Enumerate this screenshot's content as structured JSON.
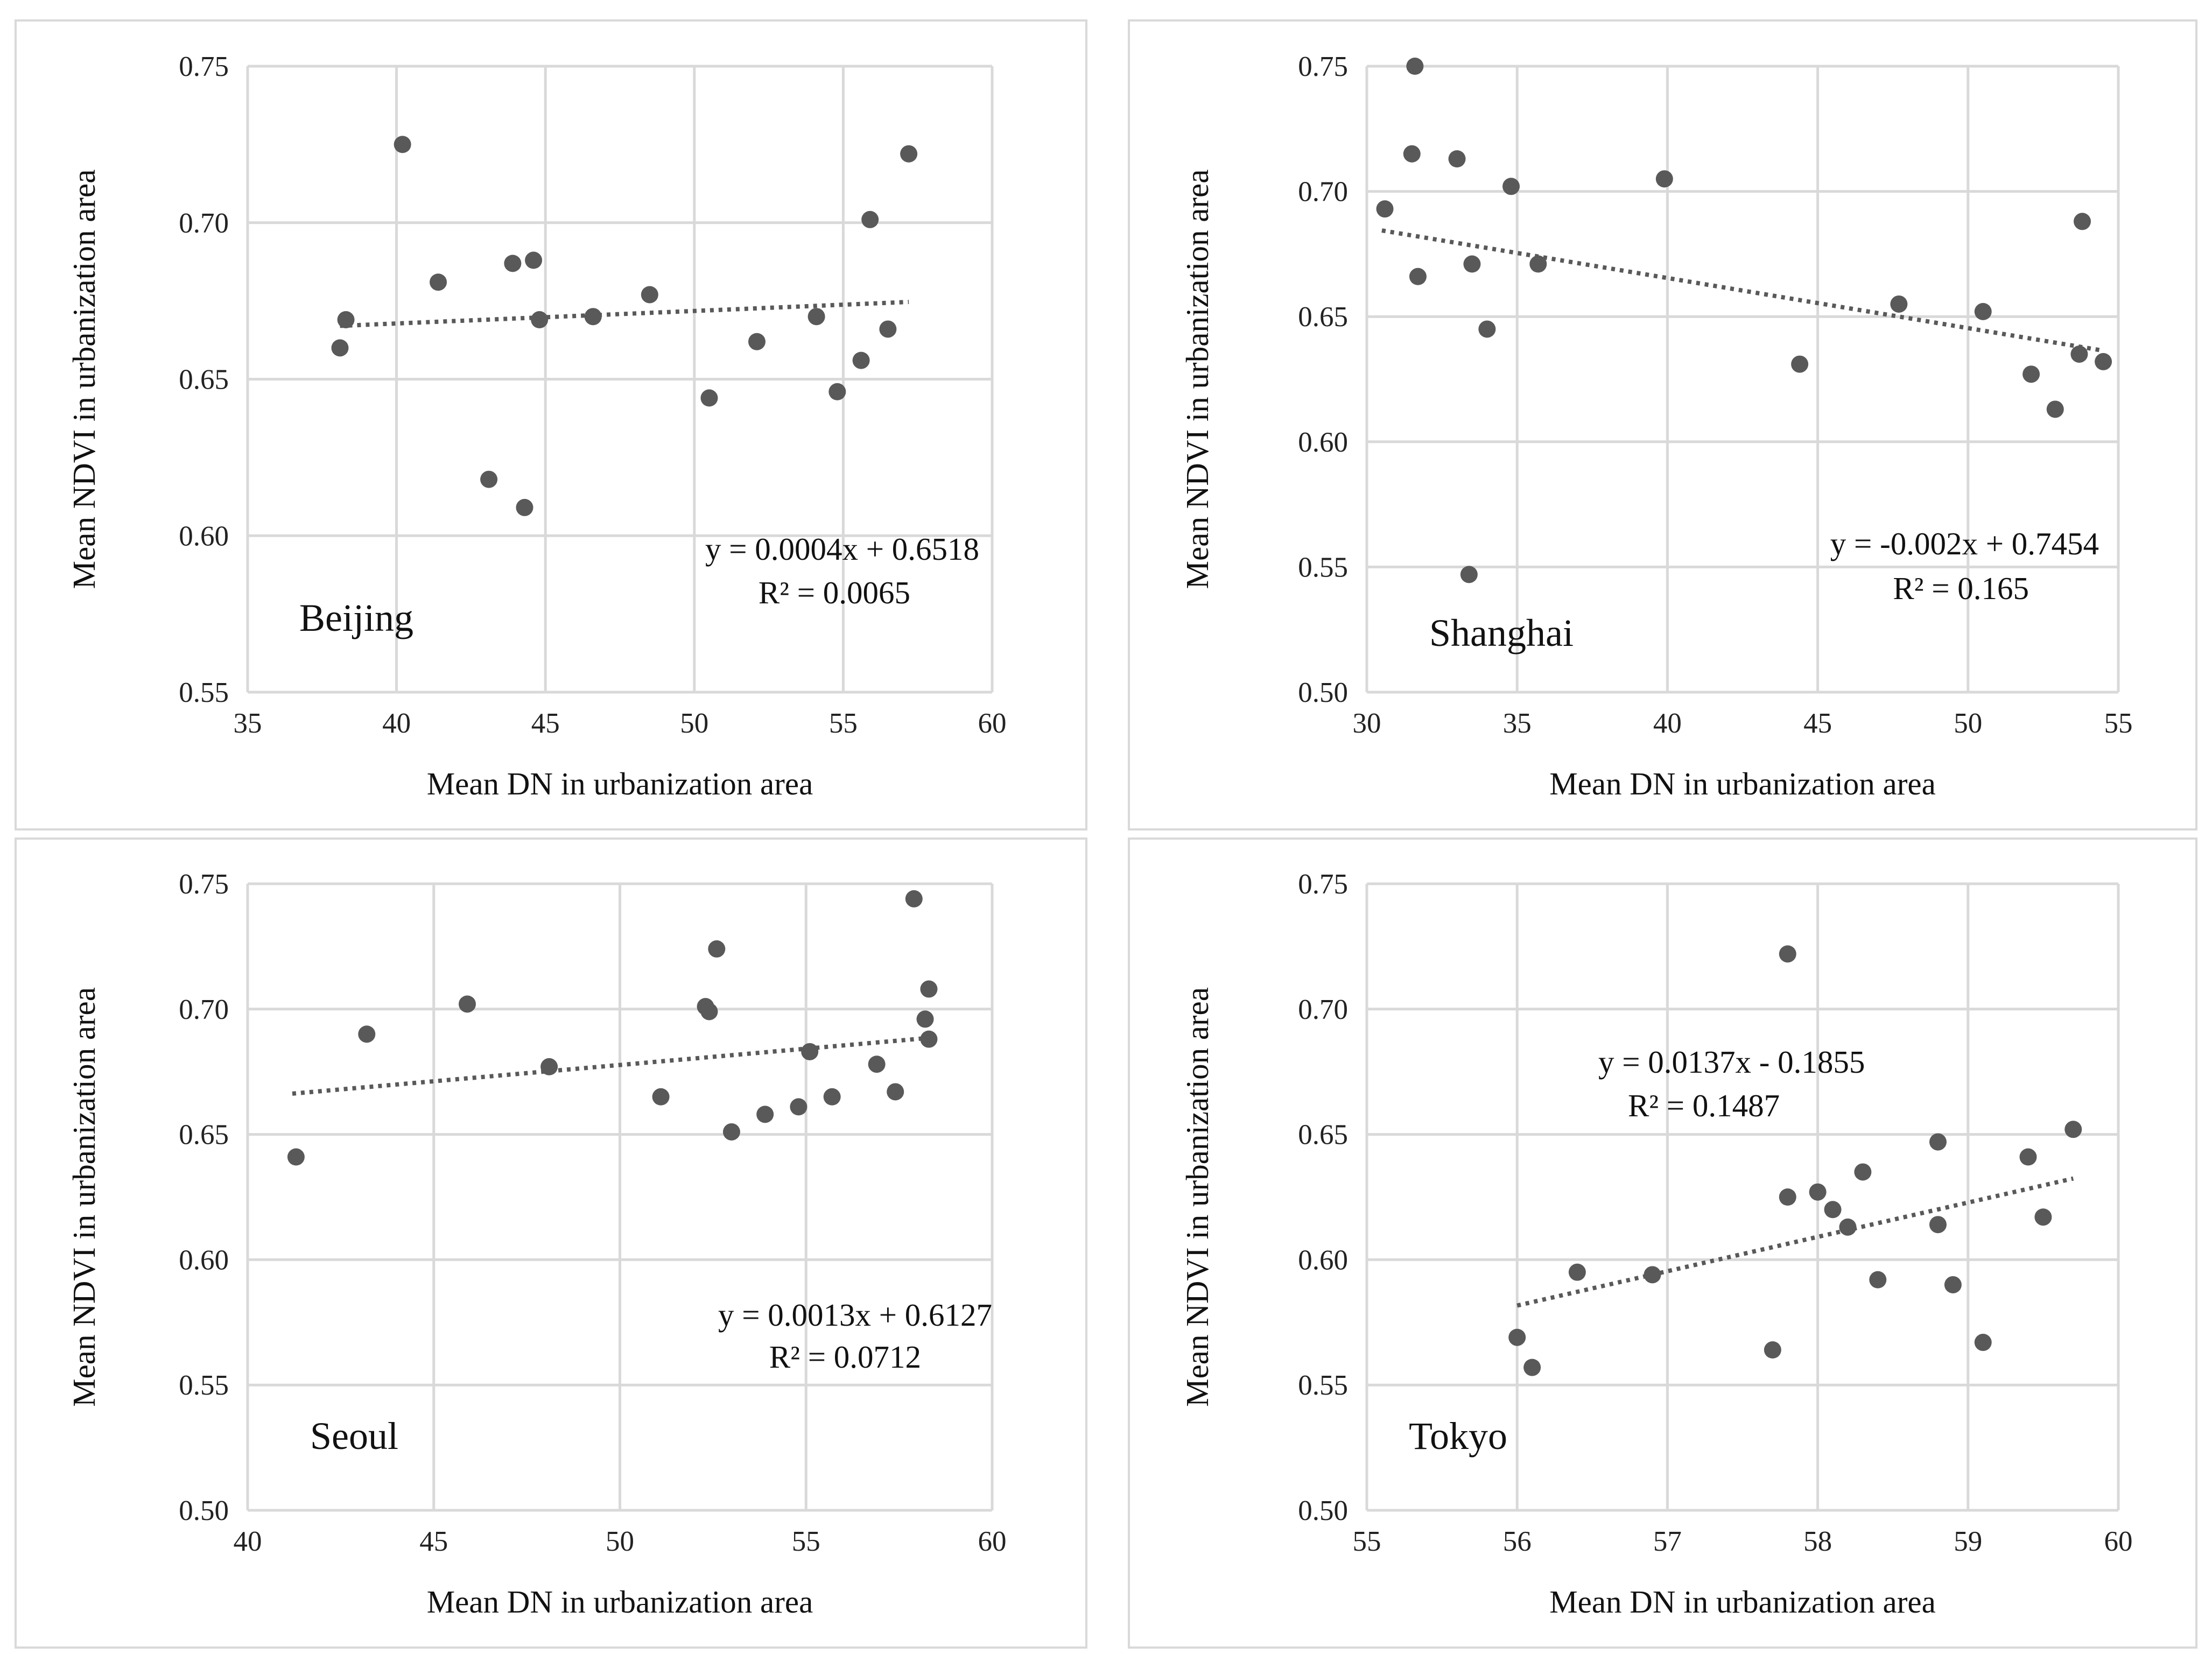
{
  "chart_data": [
    {
      "type": "scatter",
      "label": "Beijing",
      "xlabel": "Mean DN in urbanization area",
      "ylabel": "Mean NDVI in urbanization area",
      "xlim": [
        35,
        60
      ],
      "xticks": [
        35,
        40,
        45,
        50,
        55,
        60
      ],
      "ylim": [
        0.55,
        0.75
      ],
      "yticks": [
        "0.55",
        "0.60",
        "0.65",
        "0.70",
        "0.75"
      ],
      "trendline": {
        "slope": 0.0004,
        "intercept": 0.6518,
        "x_range": [
          38.1,
          57.2
        ]
      },
      "equation": "y = 0.0004x + 0.6518",
      "r2": "R² = 0.0065",
      "points": [
        [
          38.1,
          0.66
        ],
        [
          38.3,
          0.669
        ],
        [
          40.2,
          0.725
        ],
        [
          41.4,
          0.681
        ],
        [
          43.1,
          0.618
        ],
        [
          43.9,
          0.687
        ],
        [
          44.3,
          0.609
        ],
        [
          44.6,
          0.688
        ],
        [
          44.8,
          0.669
        ],
        [
          46.6,
          0.67
        ],
        [
          48.5,
          0.677
        ],
        [
          50.5,
          0.644
        ],
        [
          52.1,
          0.662
        ],
        [
          54.1,
          0.67
        ],
        [
          54.8,
          0.646
        ],
        [
          55.6,
          0.656
        ],
        [
          55.9,
          0.701
        ],
        [
          56.5,
          0.666
        ],
        [
          57.2,
          0.722
        ]
      ]
    },
    {
      "type": "scatter",
      "label": "Shanghai",
      "xlabel": "Mean DN in urbanization area",
      "ylabel": "Mean NDVI in urbanization area",
      "xlim": [
        30,
        55
      ],
      "xticks": [
        30,
        35,
        40,
        45,
        50,
        55
      ],
      "ylim": [
        0.5,
        0.75
      ],
      "yticks": [
        "0.50",
        "0.55",
        "0.60",
        "0.65",
        "0.70",
        "0.75"
      ],
      "trendline": {
        "slope": -0.002,
        "intercept": 0.7454,
        "x_range": [
          30.5,
          54.5
        ]
      },
      "equation": "y = -0.002x + 0.7454",
      "r2": "R² = 0.165",
      "points": [
        [
          30.6,
          0.693
        ],
        [
          31.5,
          0.715
        ],
        [
          31.6,
          0.75
        ],
        [
          31.7,
          0.666
        ],
        [
          33.0,
          0.713
        ],
        [
          33.4,
          0.547
        ],
        [
          33.5,
          0.671
        ],
        [
          34.0,
          0.645
        ],
        [
          34.8,
          0.702
        ],
        [
          35.7,
          0.671
        ],
        [
          39.9,
          0.705
        ],
        [
          44.4,
          0.631
        ],
        [
          47.7,
          0.655
        ],
        [
          50.5,
          0.652
        ],
        [
          52.1,
          0.627
        ],
        [
          52.9,
          0.613
        ],
        [
          53.7,
          0.635
        ],
        [
          53.8,
          0.688
        ],
        [
          54.5,
          0.632
        ]
      ]
    },
    {
      "type": "scatter",
      "label": "Seoul",
      "xlabel": "Mean DN in urbanization area",
      "ylabel": "Mean NDVI in urbanization area",
      "xlim": [
        40,
        60
      ],
      "xticks": [
        40,
        45,
        50,
        55,
        60
      ],
      "ylim": [
        0.5,
        0.75
      ],
      "yticks": [
        "0.50",
        "0.55",
        "0.60",
        "0.65",
        "0.70",
        "0.75"
      ],
      "trendline": {
        "slope": 0.0013,
        "intercept": 0.6127,
        "x_range": [
          41.2,
          58.4
        ]
      },
      "equation": "y = 0.0013x + 0.6127",
      "r2": "R² = 0.0712",
      "points": [
        [
          41.3,
          0.641
        ],
        [
          43.2,
          0.69
        ],
        [
          45.9,
          0.702
        ],
        [
          48.1,
          0.677
        ],
        [
          51.1,
          0.665
        ],
        [
          52.3,
          0.701
        ],
        [
          52.4,
          0.699
        ],
        [
          52.6,
          0.724
        ],
        [
          53.0,
          0.651
        ],
        [
          53.9,
          0.658
        ],
        [
          54.8,
          0.661
        ],
        [
          55.1,
          0.683
        ],
        [
          55.7,
          0.665
        ],
        [
          56.9,
          0.678
        ],
        [
          57.4,
          0.667
        ],
        [
          57.9,
          0.744
        ],
        [
          58.2,
          0.696
        ],
        [
          58.3,
          0.708
        ],
        [
          58.3,
          0.688
        ]
      ]
    },
    {
      "type": "scatter",
      "label": "Tokyo",
      "xlabel": "Mean DN in urbanization area",
      "ylabel": "Mean NDVI in urbanization area",
      "xlim": [
        55,
        60
      ],
      "xticks": [
        55,
        56,
        57,
        58,
        59,
        60
      ],
      "ylim": [
        0.5,
        0.75
      ],
      "yticks": [
        "0.50",
        "0.55",
        "0.60",
        "0.65",
        "0.70",
        "0.75"
      ],
      "trendline": {
        "slope": 0.0137,
        "intercept": -0.1855,
        "x_range": [
          56.0,
          59.7
        ]
      },
      "equation": "y = 0.0137x - 0.1855",
      "r2": "R² = 0.1487",
      "points": [
        [
          56.0,
          0.569
        ],
        [
          56.1,
          0.557
        ],
        [
          56.4,
          0.595
        ],
        [
          56.9,
          0.594
        ],
        [
          57.7,
          0.564
        ],
        [
          57.8,
          0.722
        ],
        [
          57.8,
          0.625
        ],
        [
          58.0,
          0.627
        ],
        [
          58.1,
          0.62
        ],
        [
          58.2,
          0.613
        ],
        [
          58.3,
          0.635
        ],
        [
          58.4,
          0.592
        ],
        [
          58.8,
          0.647
        ],
        [
          58.8,
          0.614
        ],
        [
          58.9,
          0.59
        ],
        [
          59.1,
          0.567
        ],
        [
          59.4,
          0.641
        ],
        [
          59.5,
          0.617
        ],
        [
          59.7,
          0.652
        ]
      ]
    }
  ]
}
